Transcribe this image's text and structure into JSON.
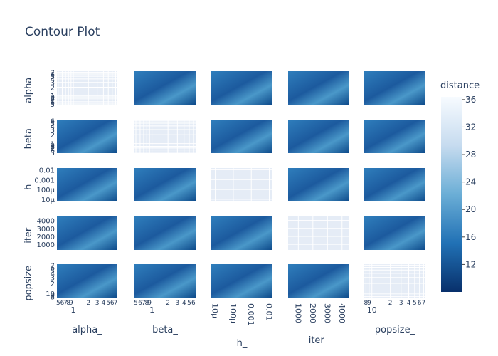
{
  "chart_data": {
    "type": "contour-matrix",
    "title": "Contour Plot",
    "params": [
      {
        "name": "alpha_",
        "log": true,
        "lim": [
          0.47,
          7.6
        ],
        "ticks": [
          {
            "value": 0.5,
            "label": "5"
          },
          {
            "value": 0.6,
            "label": "6"
          },
          {
            "value": 0.7,
            "label": "7"
          },
          {
            "value": 0.8,
            "label": "8"
          },
          {
            "value": 0.9,
            "label": "9"
          },
          1,
          2,
          3,
          4,
          5,
          6,
          7
        ]
      },
      {
        "name": "beta_",
        "log": true,
        "lim": [
          0.47,
          6.6
        ],
        "ticks": [
          {
            "value": 0.5,
            "label": "5"
          },
          {
            "value": 0.6,
            "label": "6"
          },
          {
            "value": 0.7,
            "label": "7"
          },
          {
            "value": 0.8,
            "label": "8"
          },
          {
            "value": 0.9,
            "label": "9"
          },
          1,
          2,
          3,
          4,
          5,
          6
        ]
      },
      {
        "name": "h_",
        "log": true,
        "lim": [
          6e-06,
          0.015
        ],
        "ticks": [
          {
            "value": 1e-05,
            "label": "10μ"
          },
          {
            "value": 0.0001,
            "label": "100μ"
          },
          0.001,
          0.01
        ]
      },
      {
        "name": "iter_",
        "log": false,
        "lim": [
          300,
          4500
        ],
        "ticks": [
          1000,
          2000,
          3000,
          4000
        ]
      },
      {
        "name": "popsize_",
        "log": true,
        "lim": [
          7.5,
          75
        ],
        "ticks": [
          8,
          9,
          10,
          {
            "value": 20,
            "label": "2"
          },
          {
            "value": 30,
            "label": "3"
          },
          {
            "value": 40,
            "label": "4"
          },
          {
            "value": 50,
            "label": "5"
          },
          {
            "value": 60,
            "label": "6"
          },
          {
            "value": 70,
            "label": "7"
          }
        ]
      }
    ],
    "colorbar": {
      "title": "distance",
      "lim": [
        8,
        36.4
      ],
      "ticks": [
        12,
        16,
        20,
        24,
        28,
        32,
        36
      ],
      "colors": [
        "#08306b",
        "#2171b5",
        "#6baed6",
        "#c6dbef",
        "#f7fbff"
      ]
    }
  }
}
